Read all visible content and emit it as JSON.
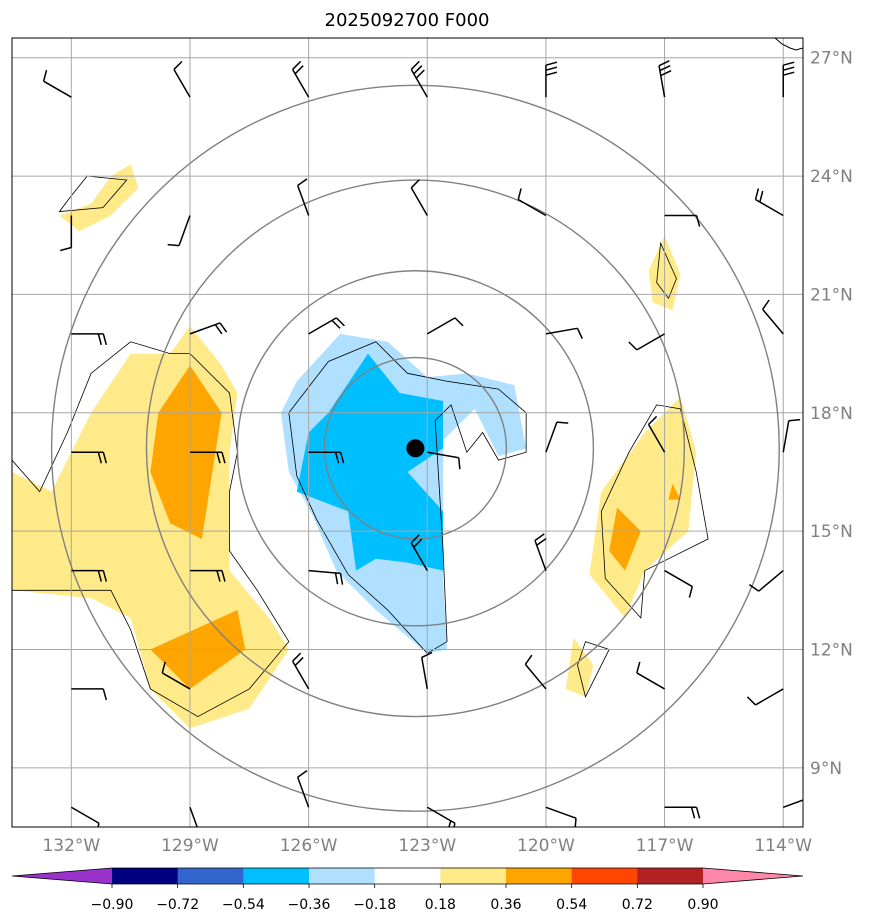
{
  "chart_data": {
    "type": "map-contour",
    "title": "2025092700 F000",
    "lon_range": [
      -133.5,
      -113.5
    ],
    "lat_range": [
      7.5,
      27.5
    ],
    "lat_ticks": [
      9,
      12,
      15,
      18,
      21,
      24,
      27
    ],
    "lat_labels": [
      "9°N",
      "12°N",
      "15°N",
      "18°N",
      "21°N",
      "24°N",
      "27°N"
    ],
    "lon_ticks": [
      -132,
      -129,
      -126,
      -123,
      -120,
      -117,
      -114
    ],
    "lon_labels": [
      "132°W",
      "129°W",
      "126°W",
      "123°W",
      "120°W",
      "117°W",
      "114°W"
    ],
    "storm_center": {
      "lon": -123.3,
      "lat": 17.1
    },
    "range_rings_deg": [
      2.3,
      4.5,
      6.8,
      9.2
    ],
    "colorbar": {
      "levels": [
        -0.9,
        -0.72,
        -0.54,
        -0.36,
        -0.18,
        0.18,
        0.36,
        0.54,
        0.72,
        0.9
      ],
      "labels": [
        "−0.90",
        "−0.72",
        "−0.54",
        "−0.36",
        "−0.18",
        "0.18",
        "0.36",
        "0.54",
        "0.72",
        "0.90"
      ],
      "colors": [
        "#9933cc",
        "#000080",
        "#3366cc",
        "#00bfff",
        "#b0e0ff",
        "#ffffff",
        "#ffea8a",
        "#ffa500",
        "#ff4500",
        "#b22222",
        "#ff88aa"
      ]
    },
    "shaded_regions": [
      {
        "name": "west-positive-band",
        "level": "0.18 to 0.36",
        "color": "#ffea8a",
        "points": [
          [
            -132.5,
            16
          ],
          [
            -131.5,
            18
          ],
          [
            -130.5,
            19.5
          ],
          [
            -129.5,
            19.5
          ],
          [
            -129,
            20.2
          ],
          [
            -128.2,
            19.2
          ],
          [
            -127.8,
            18.5
          ],
          [
            -128,
            17
          ],
          [
            -128,
            14
          ],
          [
            -127,
            12.8
          ],
          [
            -126.5,
            12
          ],
          [
            -127.5,
            10.5
          ],
          [
            -129,
            10
          ],
          [
            -130,
            11
          ],
          [
            -130.5,
            12.8
          ],
          [
            -131.5,
            13.3
          ],
          [
            -133.5,
            13.5
          ],
          [
            -133.5,
            16.5
          ]
        ]
      },
      {
        "name": "west-orange-core",
        "level": "0.36 to 0.54",
        "color": "#ffa500",
        "points": [
          [
            -129.8,
            18
          ],
          [
            -129,
            19.2
          ],
          [
            -128.2,
            18
          ],
          [
            -128.7,
            14.8
          ],
          [
            -129.5,
            15.2
          ],
          [
            -130,
            16.5
          ]
        ]
      },
      {
        "name": "west-orange-south",
        "level": "0.36 to 0.54",
        "color": "#ffa500",
        "points": [
          [
            -130,
            12
          ],
          [
            -129,
            11
          ],
          [
            -127.6,
            12
          ],
          [
            -127.8,
            13
          ],
          [
            -128.9,
            12.5
          ]
        ]
      },
      {
        "name": "northwest-patch",
        "level": "0.18 to 0.36",
        "color": "#ffea8a",
        "points": [
          [
            -132.3,
            23
          ],
          [
            -131.5,
            23.3
          ],
          [
            -131,
            24
          ],
          [
            -130.5,
            24.3
          ],
          [
            -130.3,
            23.7
          ],
          [
            -131,
            23
          ],
          [
            -131.8,
            22.6
          ]
        ]
      },
      {
        "name": "east-positive-band",
        "level": "0.18 to 0.36",
        "color": "#ffea8a",
        "points": [
          [
            -117.5,
            17.5
          ],
          [
            -116.6,
            18.4
          ],
          [
            -116.2,
            17
          ],
          [
            -116.4,
            15
          ],
          [
            -117.5,
            14
          ],
          [
            -118,
            12.8
          ],
          [
            -118.9,
            13.9
          ],
          [
            -118.6,
            16
          ]
        ]
      },
      {
        "name": "east-orange-core",
        "level": "0.36 to 0.54",
        "color": "#ffa500",
        "points": [
          [
            -118.2,
            15.6
          ],
          [
            -117.6,
            15
          ],
          [
            -118,
            14
          ],
          [
            -118.4,
            14.5
          ]
        ]
      },
      {
        "name": "east-orange-dot",
        "level": "0.36 to 0.54",
        "color": "#ffa500",
        "points": [
          [
            -116.8,
            16.2
          ],
          [
            -116.6,
            15.8
          ],
          [
            -116.9,
            15.8
          ]
        ]
      },
      {
        "name": "northeast-patch",
        "level": "0.18 to 0.36",
        "color": "#ffea8a",
        "points": [
          [
            -117,
            22.5
          ],
          [
            -116.6,
            21.5
          ],
          [
            -116.8,
            20.6
          ],
          [
            -117.3,
            20.8
          ],
          [
            -117.4,
            21.6
          ]
        ]
      },
      {
        "name": "southeast-patch",
        "level": "0.18 to 0.36",
        "color": "#ffea8a",
        "points": [
          [
            -119.3,
            12.3
          ],
          [
            -118.8,
            11.6
          ],
          [
            -119,
            10.8
          ],
          [
            -119.5,
            11
          ]
        ]
      },
      {
        "name": "central-negative-light",
        "level": "-0.36 to -0.18",
        "color": "#b0e0ff",
        "points": [
          [
            -126.3,
            18.8
          ],
          [
            -125.2,
            20
          ],
          [
            -124,
            19.8
          ],
          [
            -123,
            18.9
          ],
          [
            -122,
            19
          ],
          [
            -120.8,
            18.7
          ],
          [
            -120.5,
            17.1
          ],
          [
            -121.2,
            16.9
          ],
          [
            -121.8,
            18.1
          ],
          [
            -122.6,
            17.3
          ],
          [
            -122.6,
            13.8
          ],
          [
            -122.5,
            12
          ],
          [
            -123,
            11.9
          ],
          [
            -124.3,
            13
          ],
          [
            -125.3,
            14
          ],
          [
            -125.9,
            15.4
          ],
          [
            -126.5,
            16.5
          ],
          [
            -126.7,
            18
          ]
        ]
      },
      {
        "name": "central-negative-core",
        "level": "-0.54 to -0.36",
        "color": "#00bfff",
        "points": [
          [
            -125.5,
            18
          ],
          [
            -124.5,
            19.5
          ],
          [
            -123.7,
            18.5
          ],
          [
            -122.6,
            18.3
          ],
          [
            -122.6,
            17.1
          ],
          [
            -123.5,
            16.5
          ],
          [
            -122.6,
            15.5
          ],
          [
            -122.6,
            14
          ],
          [
            -123.5,
            14.2
          ],
          [
            -124.3,
            14.3
          ],
          [
            -124.8,
            14
          ],
          [
            -125,
            15.5
          ],
          [
            -126.3,
            16
          ],
          [
            -126,
            17.5
          ]
        ]
      }
    ],
    "contour_lines": [
      {
        "name": "west-contour",
        "points": [
          [
            -133.5,
            13.5
          ],
          [
            -131,
            13.5
          ],
          [
            -130.5,
            12.5
          ],
          [
            -130,
            11
          ],
          [
            -128.8,
            10.3
          ],
          [
            -127.5,
            11
          ],
          [
            -126.5,
            12.2
          ],
          [
            -127.3,
            13.5
          ],
          [
            -128,
            14.5
          ],
          [
            -128,
            16
          ],
          [
            -127.8,
            17
          ],
          [
            -128,
            18.5
          ],
          [
            -129,
            19.5
          ],
          [
            -129.5,
            19.5
          ],
          [
            -130.5,
            19.8
          ],
          [
            -131.5,
            19
          ],
          [
            -132.1,
            17.5
          ],
          [
            -132.8,
            16
          ],
          [
            -133.5,
            16.8
          ]
        ]
      },
      {
        "name": "central-contour",
        "points": [
          [
            -124.3,
            19.8
          ],
          [
            -123.5,
            19
          ],
          [
            -122.5,
            18.8
          ],
          [
            -121.2,
            18.6
          ],
          [
            -120.5,
            18
          ],
          [
            -120.5,
            17
          ],
          [
            -121.2,
            16.8
          ],
          [
            -121.6,
            17.5
          ],
          [
            -122,
            17
          ],
          [
            -122.4,
            18.2
          ],
          [
            -122.8,
            17.8
          ],
          [
            -122.6,
            14.5
          ],
          [
            -122.5,
            12.2
          ],
          [
            -123,
            11.9
          ],
          [
            -124,
            13
          ],
          [
            -125,
            13.9
          ],
          [
            -125.8,
            15.3
          ],
          [
            -126.3,
            16.4
          ],
          [
            -126.5,
            18
          ],
          [
            -125.5,
            19.3
          ]
        ]
      },
      {
        "name": "east-contour",
        "points": [
          [
            -117.2,
            18.2
          ],
          [
            -116.6,
            18.1
          ],
          [
            -116.2,
            16.5
          ],
          [
            -115.9,
            14.8
          ],
          [
            -117.5,
            14
          ],
          [
            -117.6,
            12.8
          ],
          [
            -118.5,
            13.8
          ],
          [
            -118.6,
            15.5
          ],
          [
            -117.9,
            17
          ]
        ]
      },
      {
        "name": "northeast-contour",
        "points": [
          [
            -117.1,
            22.3
          ],
          [
            -116.7,
            21.4
          ],
          [
            -116.9,
            20.9
          ],
          [
            -117.2,
            21.3
          ]
        ]
      },
      {
        "name": "southeast-contour",
        "points": [
          [
            -119,
            12.2
          ],
          [
            -118.4,
            12
          ],
          [
            -119,
            10.8
          ],
          [
            -119.2,
            11.6
          ]
        ]
      },
      {
        "name": "northwest-contour",
        "points": [
          [
            -132.3,
            23.1
          ],
          [
            -131.2,
            23.2
          ],
          [
            -130.6,
            23.9
          ],
          [
            -131.6,
            24
          ],
          [
            -132,
            23.5
          ]
        ]
      }
    ],
    "wind_barbs": {
      "lons": [
        -132,
        -129,
        -126,
        -123,
        -120,
        -117,
        -114
      ],
      "lats": [
        8,
        11,
        14,
        17,
        20,
        23,
        26
      ],
      "directions_deg": [
        [
          120,
          160,
          340,
          120,
          110,
          90,
          70
        ],
        [
          90,
          300,
          330,
          350,
          320,
          300,
          240
        ],
        [
          90,
          90,
          95,
          330,
          340,
          120,
          230
        ],
        [
          90,
          90,
          90,
          100,
          20,
          330,
          10
        ],
        [
          90,
          70,
          60,
          60,
          80,
          240,
          320
        ],
        [
          180,
          200,
          340,
          330,
          300,
          90,
          300
        ],
        [
          300,
          330,
          330,
          330,
          0,
          350,
          0
        ]
      ],
      "flags": [
        [
          1,
          1,
          1,
          2,
          1,
          2,
          2
        ],
        [
          1,
          1,
          2,
          1,
          1,
          1,
          1
        ],
        [
          2,
          2,
          2,
          2,
          2,
          1,
          1
        ],
        [
          2,
          2,
          2,
          1,
          1,
          1,
          1
        ],
        [
          2,
          2,
          2,
          1,
          1,
          1,
          1
        ],
        [
          1,
          1,
          1,
          1,
          1,
          1,
          2
        ],
        [
          1,
          1,
          2,
          3,
          3,
          3,
          3
        ]
      ]
    }
  }
}
